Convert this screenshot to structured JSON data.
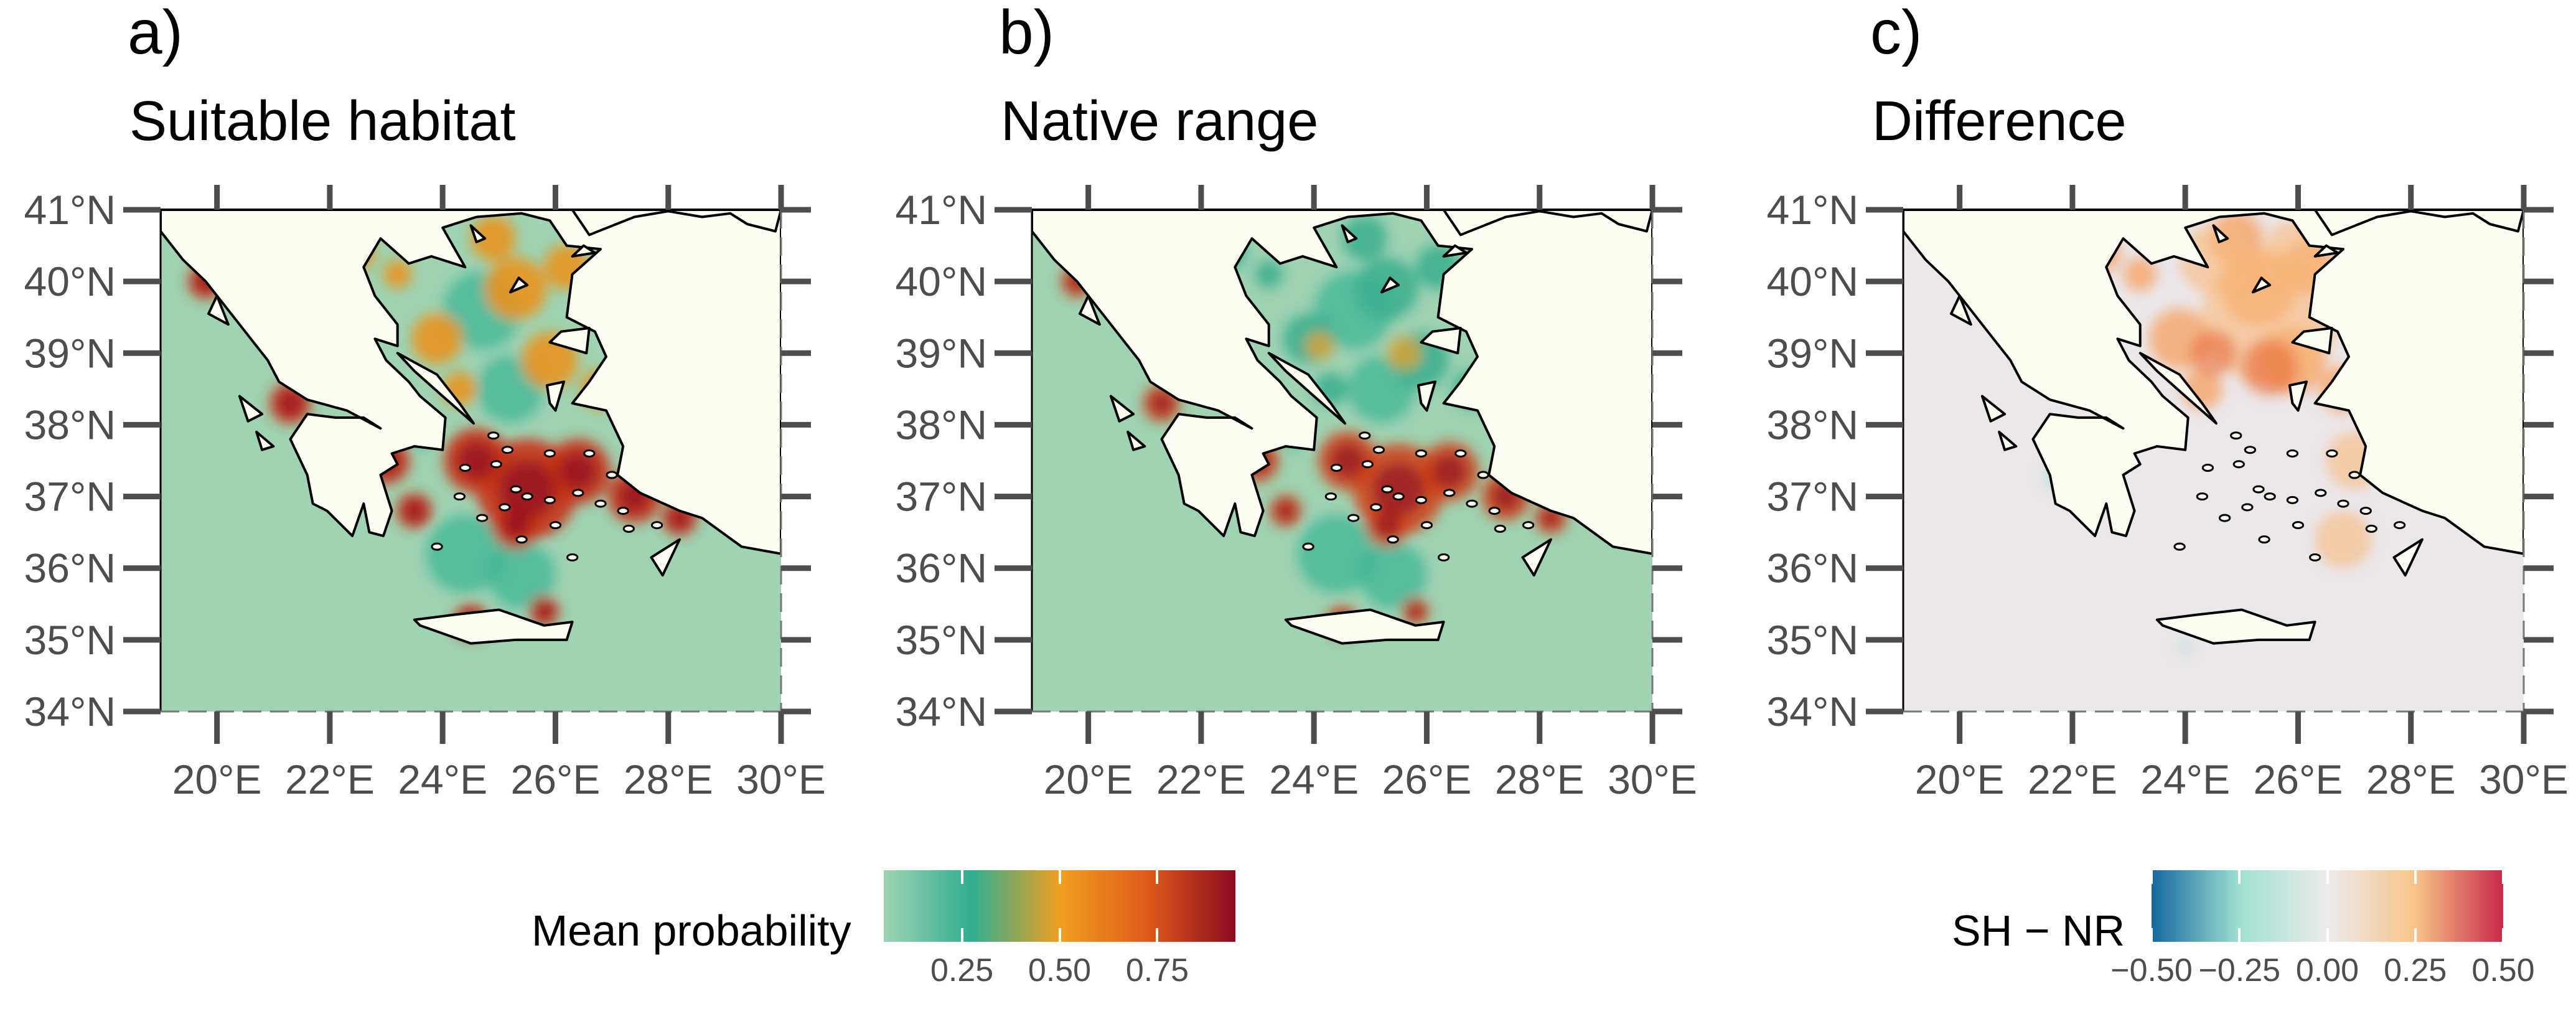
{
  "colors": {
    "ocean_low": "#9fd3b2",
    "land": "#fdfdf2",
    "coast": "#000000",
    "tick": "#4d4d4d",
    "prob_scale": [
      "#9fd3b2",
      "#2fae91",
      "#f0a020",
      "#e05a1a",
      "#8b0a1e"
    ],
    "diff_scale": [
      "#1468a0",
      "#9fe0d0",
      "#ececec",
      "#f8c488",
      "#c8284a"
    ]
  },
  "chart_data": [
    {
      "type": "heatmap",
      "panel": "a)",
      "title": "Suitable habitat",
      "x_ticks": [
        "20°E",
        "22°E",
        "24°E",
        "26°E",
        "28°E",
        "30°E"
      ],
      "y_ticks": [
        "41°N",
        "40°N",
        "39°N",
        "38°N",
        "37°N",
        "36°N",
        "35°N",
        "34°N"
      ],
      "xlim": [
        19,
        30
      ],
      "ylim": [
        34,
        41
      ],
      "legend": "Mean probability"
    },
    {
      "type": "heatmap",
      "panel": "b)",
      "title": "Native range",
      "x_ticks": [
        "20°E",
        "22°E",
        "24°E",
        "26°E",
        "28°E",
        "30°E"
      ],
      "y_ticks": [
        "41°N",
        "40°N",
        "39°N",
        "38°N",
        "37°N",
        "36°N",
        "35°N",
        "34°N"
      ],
      "xlim": [
        19,
        30
      ],
      "ylim": [
        34,
        41
      ],
      "legend": "Mean probability"
    },
    {
      "type": "heatmap",
      "panel": "c)",
      "title": "Difference",
      "x_ticks": [
        "20°E",
        "22°E",
        "24°E",
        "26°E",
        "28°E",
        "30°E"
      ],
      "y_ticks": [
        "41°N",
        "40°N",
        "39°N",
        "38°N",
        "37°N",
        "36°N",
        "35°N",
        "34°N"
      ],
      "xlim": [
        19,
        30
      ],
      "ylim": [
        34,
        41
      ],
      "legend": "SH − NR"
    }
  ],
  "legends": {
    "probability": {
      "title": "Mean probability",
      "ticks": [
        "0.25",
        "0.50",
        "0.75"
      ],
      "tick_values": [
        0.25,
        0.5,
        0.75
      ],
      "range": [
        0.05,
        0.95
      ]
    },
    "difference": {
      "title": "SH − NR",
      "ticks": [
        "−0.50",
        "−0.25",
        "0.00",
        "0.25",
        "0.50"
      ],
      "tick_values": [
        -0.5,
        -0.25,
        0,
        0.25,
        0.5
      ],
      "range": [
        -0.5,
        0.5
      ]
    }
  }
}
